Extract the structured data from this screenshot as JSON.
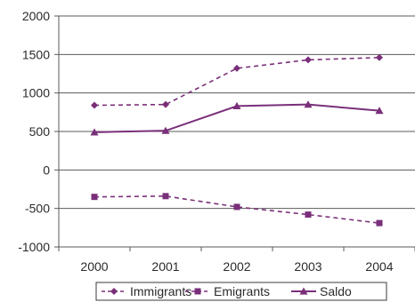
{
  "chart_data": {
    "type": "line",
    "title": "",
    "xlabel": "",
    "ylabel": "",
    "categories": [
      "2000",
      "2001",
      "2002",
      "2003",
      "2004"
    ],
    "ylim": [
      -1000,
      2000
    ],
    "yticks": [
      2000,
      1500,
      1000,
      500,
      0,
      -500,
      -1000
    ],
    "grid": "horizontal",
    "legend_position": "bottom",
    "series": [
      {
        "name": "Immigrants",
        "values": [
          840,
          850,
          1320,
          1430,
          1460
        ],
        "marker": "diamond",
        "line_style": "dashed"
      },
      {
        "name": "Emigrants",
        "values": [
          -350,
          -340,
          -480,
          -580,
          -690
        ],
        "marker": "square",
        "line_style": "dashed"
      },
      {
        "name": "Saldo",
        "values": [
          490,
          510,
          830,
          850,
          770
        ],
        "marker": "triangle",
        "line_style": "solid"
      }
    ],
    "colors": {
      "series": "#7a2f7a",
      "grid": "#5a5a5a",
      "axis": "#5a5a5a"
    }
  }
}
